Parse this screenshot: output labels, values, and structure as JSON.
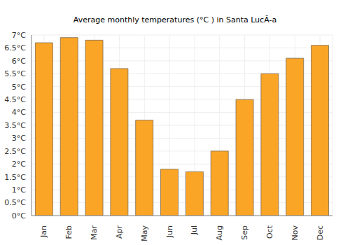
{
  "chart_data": {
    "type": "bar",
    "title": "Average monthly temperatures (°C ) in Santa LucĂ-a",
    "categories": [
      "Jan",
      "Feb",
      "Mar",
      "Apr",
      "May",
      "Jun",
      "Jul",
      "Aug",
      "Sep",
      "Oct",
      "Nov",
      "Dec"
    ],
    "values": [
      6.7,
      6.9,
      6.8,
      5.7,
      3.7,
      1.8,
      1.7,
      2.5,
      4.5,
      5.5,
      6.1,
      6.6
    ],
    "color": "#fba526",
    "ylim": [
      0,
      7
    ],
    "yticks": [
      {
        "value": 0,
        "label": "0°C"
      },
      {
        "value": 0.5,
        "label": "0.5°C"
      },
      {
        "value": 1,
        "label": "1°C"
      },
      {
        "value": 1.5,
        "label": "1.5°C"
      },
      {
        "value": 2,
        "label": "2°C"
      },
      {
        "value": 2.5,
        "label": "2.5°C"
      },
      {
        "value": 3,
        "label": "3°C"
      },
      {
        "value": 3.5,
        "label": "3.5°C"
      },
      {
        "value": 4,
        "label": "4°C"
      },
      {
        "value": 4.5,
        "label": "4.5°C"
      },
      {
        "value": 5,
        "label": "5°C"
      },
      {
        "value": 5.5,
        "label": "5.5°C"
      },
      {
        "value": 6,
        "label": "6°C"
      },
      {
        "value": 6.5,
        "label": "6.5°C"
      },
      {
        "value": 7,
        "label": "7°C"
      }
    ],
    "grid": true
  }
}
